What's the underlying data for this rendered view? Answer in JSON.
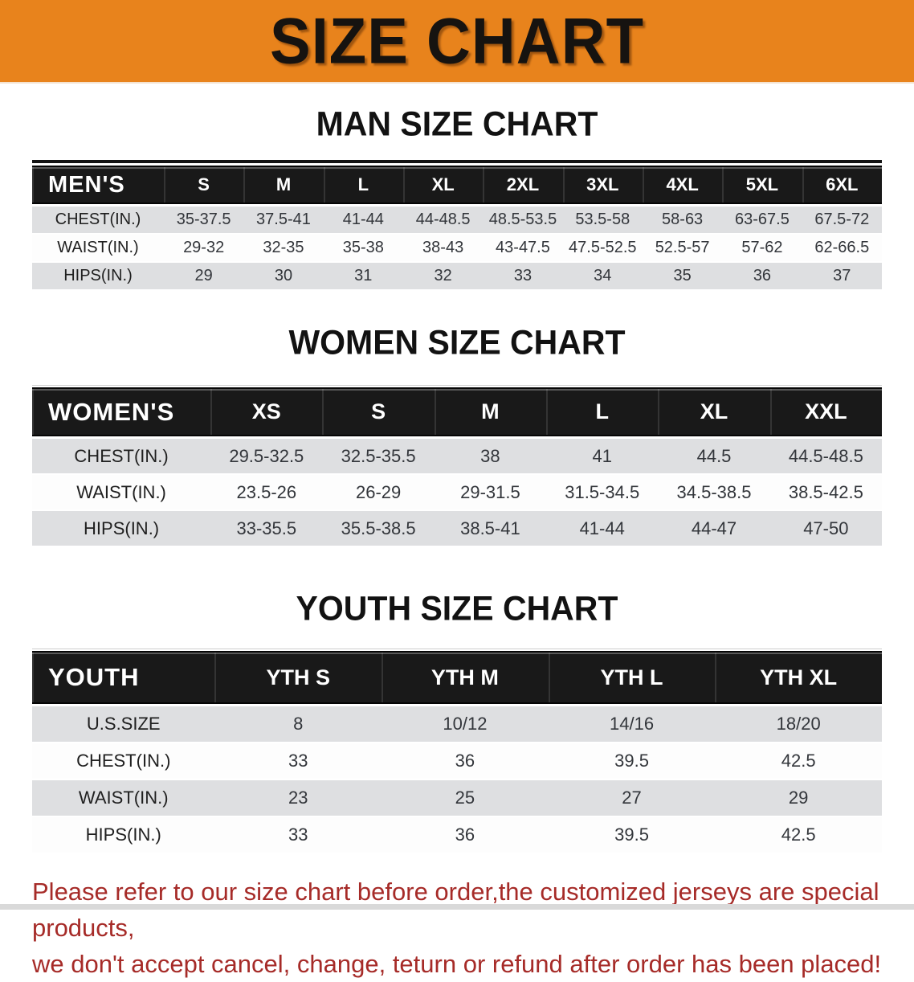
{
  "banner": {
    "title": "SIZE CHART",
    "bg_color": "#E8831C",
    "text_color": "#161310"
  },
  "sections": [
    {
      "id": "men",
      "heading": "MAN SIZE CHART",
      "table": {
        "corner_label": "MEN'S",
        "columns": [
          "S",
          "M",
          "L",
          "XL",
          "2XL",
          "3XL",
          "4XL",
          "5XL",
          "6XL"
        ],
        "rows": [
          {
            "label": "CHEST(IN.)",
            "values": [
              "35-37.5",
              "37.5-41",
              "41-44",
              "44-48.5",
              "48.5-53.5",
              "53.5-58",
              "58-63",
              "63-67.5",
              "67.5-72"
            ]
          },
          {
            "label": "WAIST(IN.)",
            "values": [
              "29-32",
              "32-35",
              "35-38",
              "38-43",
              "43-47.5",
              "47.5-52.5",
              "52.5-57",
              "57-62",
              "62-66.5"
            ]
          },
          {
            "label": "HIPS(IN.)",
            "values": [
              "29",
              "30",
              "31",
              "32",
              "33",
              "34",
              "35",
              "36",
              "37"
            ]
          }
        ]
      }
    },
    {
      "id": "women",
      "heading": "WOMEN SIZE CHART",
      "table": {
        "corner_label": "WOMEN'S",
        "columns": [
          "XS",
          "S",
          "M",
          "L",
          "XL",
          "XXL"
        ],
        "rows": [
          {
            "label": "CHEST(IN.)",
            "values": [
              "29.5-32.5",
              "32.5-35.5",
              "38",
              "41",
              "44.5",
              "44.5-48.5"
            ]
          },
          {
            "label": "WAIST(IN.)",
            "values": [
              "23.5-26",
              "26-29",
              "29-31.5",
              "31.5-34.5",
              "34.5-38.5",
              "38.5-42.5"
            ]
          },
          {
            "label": "HIPS(IN.)",
            "values": [
              "33-35.5",
              "35.5-38.5",
              "38.5-41",
              "41-44",
              "44-47",
              "47-50"
            ]
          }
        ]
      }
    },
    {
      "id": "youth",
      "heading": "YOUTH SIZE CHART",
      "table": {
        "corner_label": "YOUTH",
        "columns": [
          "YTH S",
          "YTH M",
          "YTH L",
          "YTH XL"
        ],
        "rows": [
          {
            "label": "U.S.SIZE",
            "values": [
              "8",
              "10/12",
              "14/16",
              "18/20"
            ]
          },
          {
            "label": "CHEST(IN.)",
            "values": [
              "33",
              "36",
              "39.5",
              "42.5"
            ]
          },
          {
            "label": "WAIST(IN.)",
            "values": [
              "23",
              "25",
              "27",
              "29"
            ]
          },
          {
            "label": "HIPS(IN.)",
            "values": [
              "33",
              "36",
              "39.5",
              "42.5"
            ]
          }
        ]
      }
    }
  ],
  "footer": {
    "line1": "Please refer to our size chart before order,the customized jerseys are special products,",
    "line2": "we don't accept cancel, change, teturn or refund after order has been placed!",
    "text_color": "#A62B28"
  }
}
